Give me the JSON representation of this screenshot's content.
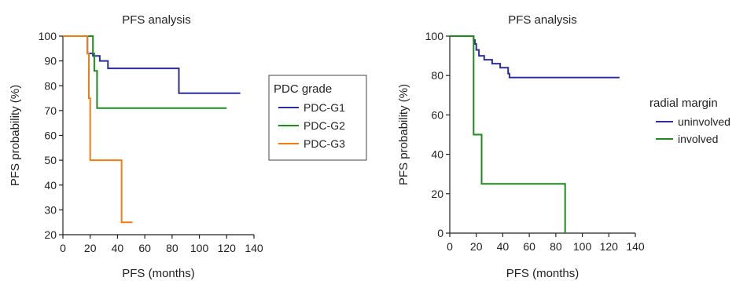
{
  "chart_data": [
    {
      "type": "line",
      "title": "PFS analysis",
      "xlabel": "PFS (months)",
      "ylabel": "PFS probability (%)",
      "xlim": [
        0,
        140
      ],
      "ylim": [
        20,
        100
      ],
      "xticks": [
        0,
        20,
        40,
        60,
        80,
        100,
        120,
        140
      ],
      "yticks": [
        20,
        30,
        40,
        50,
        60,
        70,
        80,
        90,
        100
      ],
      "grid": false,
      "legend": {
        "title": "PDC grade",
        "placement": "right",
        "boxed": true
      },
      "series": [
        {
          "name": "PDC-G1",
          "color": "#2b2f9e",
          "x": [
            0,
            18,
            18,
            22,
            22,
            27,
            27,
            33,
            33,
            85,
            85,
            130
          ],
          "y": [
            100,
            100,
            93,
            93,
            92,
            92,
            90,
            90,
            87,
            87,
            77,
            77
          ]
        },
        {
          "name": "PDC-G2",
          "color": "#1f8a1f",
          "x": [
            0,
            22,
            22,
            23,
            23,
            25,
            25,
            120
          ],
          "y": [
            100,
            100,
            93,
            93,
            86,
            86,
            71,
            71
          ]
        },
        {
          "name": "PDC-G3",
          "color": "#f07d12",
          "x": [
            0,
            18,
            18,
            19,
            19,
            20,
            20,
            43,
            43,
            51
          ],
          "y": [
            100,
            100,
            93,
            93,
            75,
            75,
            50,
            50,
            25,
            25
          ]
        }
      ]
    },
    {
      "type": "line",
      "title": "PFS analysis",
      "xlabel": "PFS (months)",
      "ylabel": "PFS probability (%)",
      "xlim": [
        0,
        140
      ],
      "ylim": [
        0,
        100
      ],
      "xticks": [
        0,
        20,
        40,
        60,
        80,
        100,
        120,
        140
      ],
      "yticks": [
        0,
        20,
        40,
        60,
        80,
        100
      ],
      "grid": false,
      "legend": {
        "title": "radial margin",
        "placement": "right",
        "boxed": false
      },
      "series": [
        {
          "name": "uninvolved",
          "color": "#2b2f9e",
          "x": [
            0,
            18,
            18,
            19,
            19,
            20,
            20,
            22,
            22,
            26,
            26,
            32,
            32,
            38,
            38,
            44,
            44,
            45,
            45,
            128
          ],
          "y": [
            100,
            100,
            98,
            98,
            96,
            96,
            93,
            93,
            90,
            90,
            88,
            88,
            86,
            86,
            84,
            84,
            81,
            81,
            79,
            79
          ]
        },
        {
          "name": "involved",
          "color": "#1f8a1f",
          "x": [
            0,
            18,
            18,
            24,
            24,
            87,
            87
          ],
          "y": [
            100,
            100,
            50,
            50,
            25,
            25,
            0
          ]
        }
      ]
    }
  ]
}
